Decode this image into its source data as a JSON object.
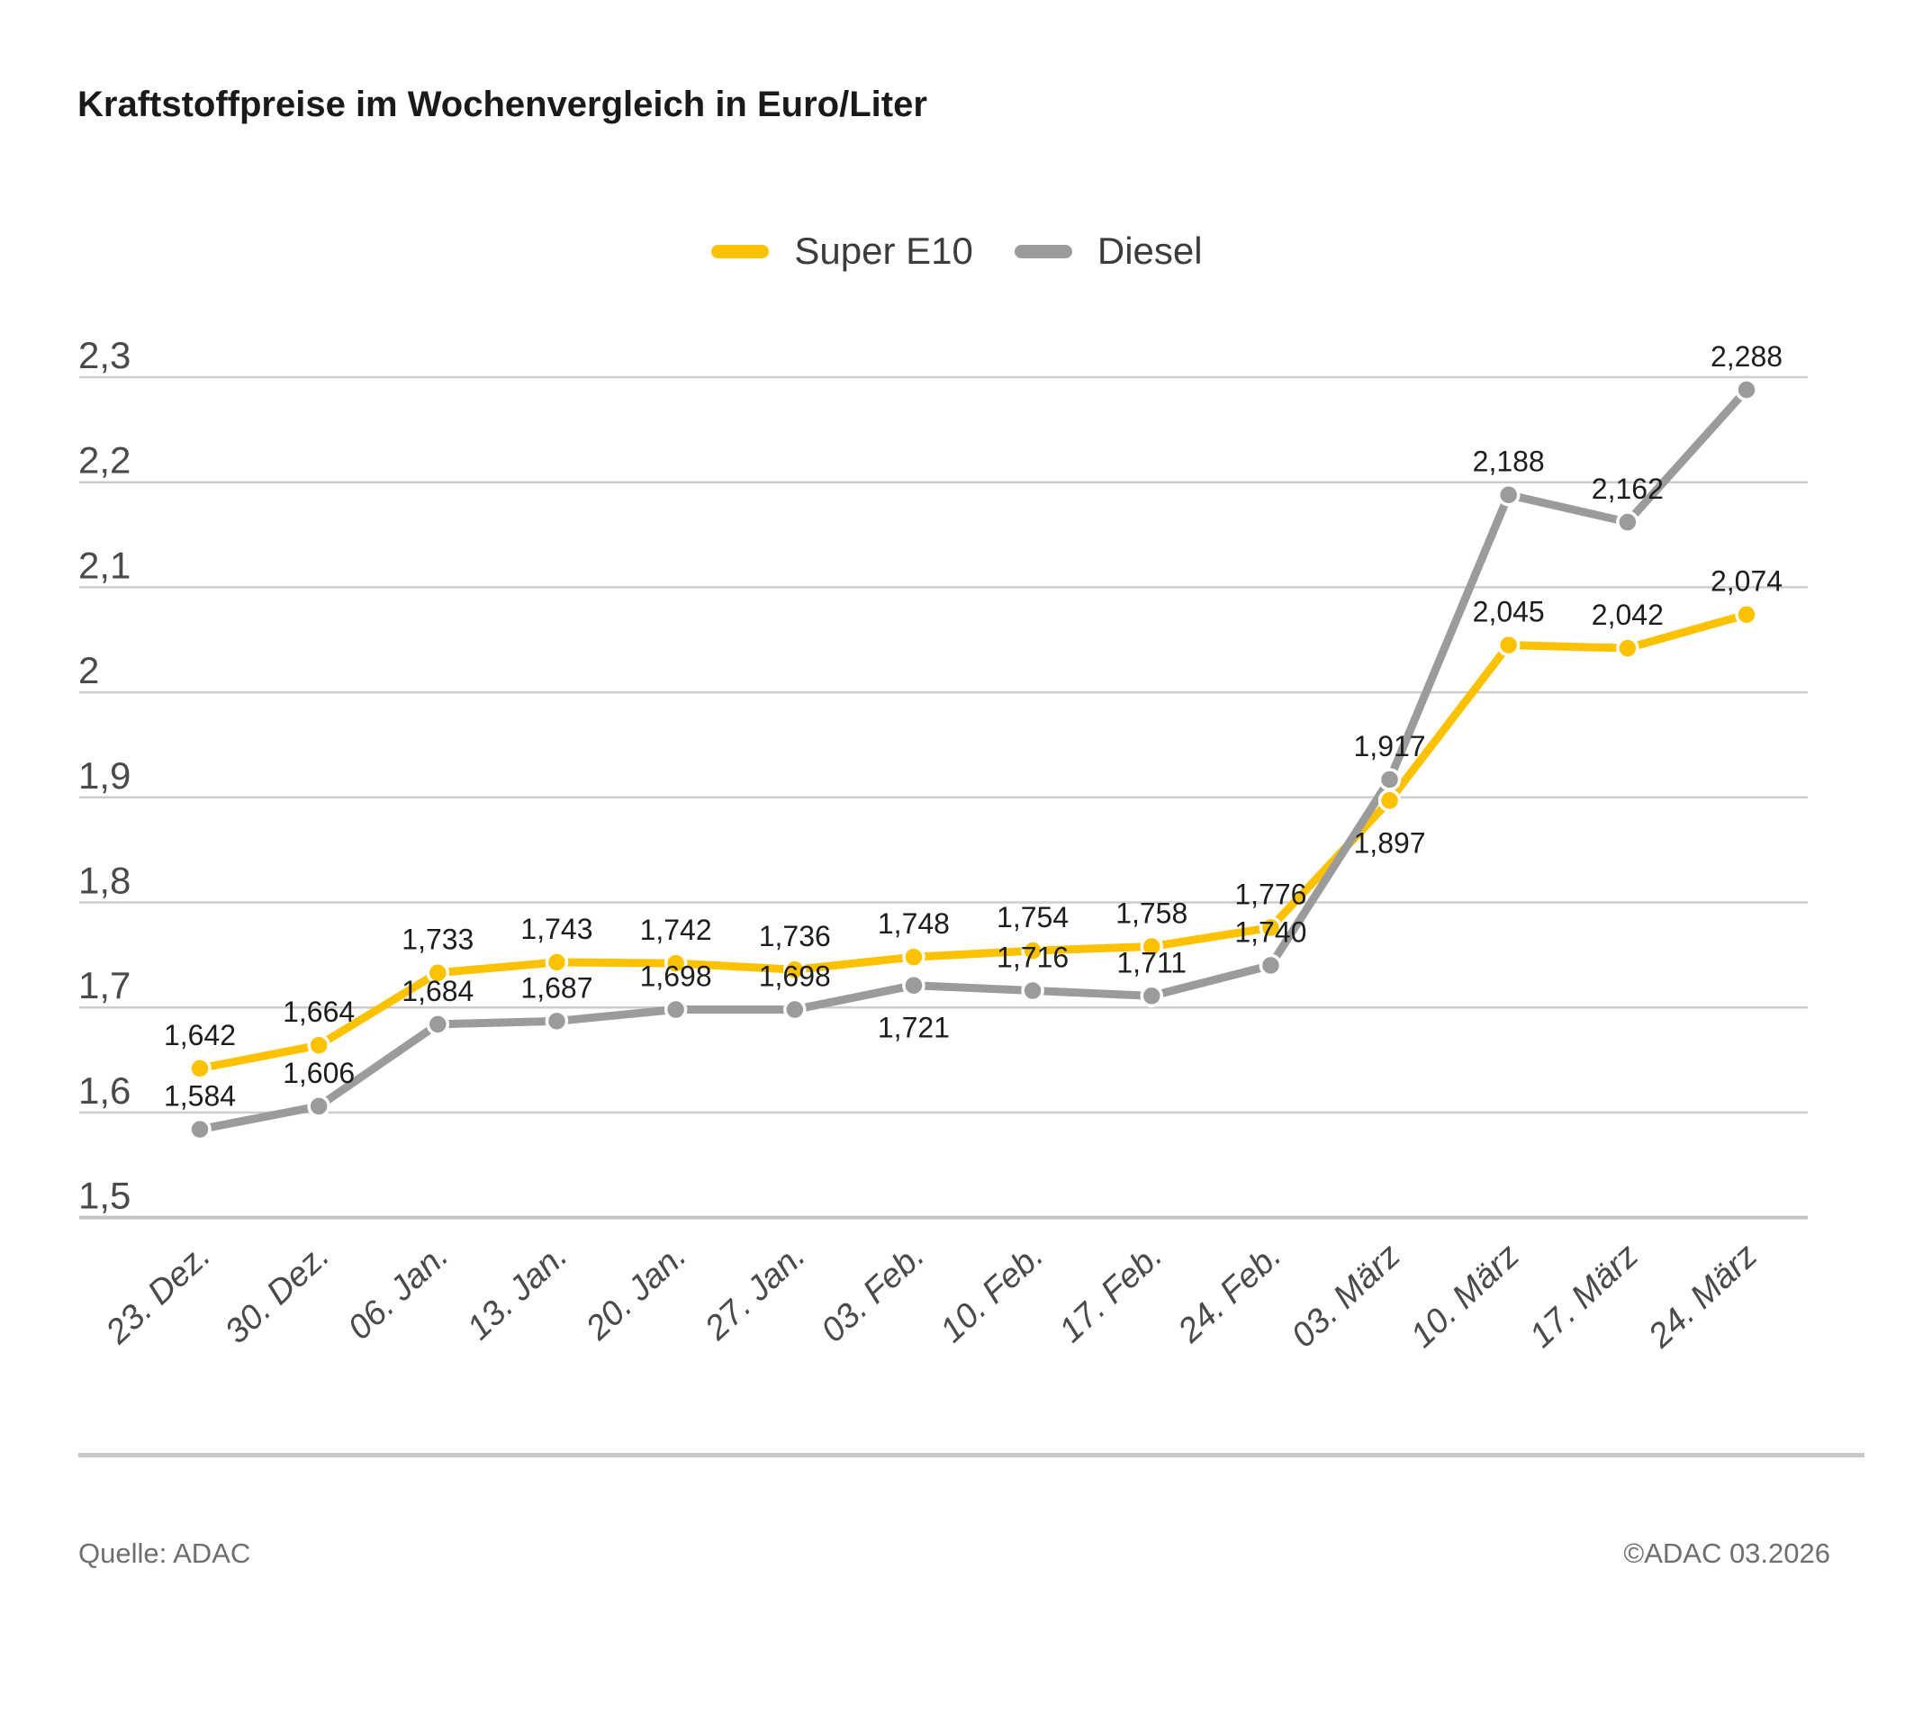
{
  "title": "Kraftstoffpreise im Wochenvergleich in Euro/Liter",
  "footer": {
    "source": "Quelle: ADAC",
    "copyright": "©ADAC 03.2026"
  },
  "colors": {
    "super_e10": "#FCC200",
    "diesel": "#9B9B9B",
    "grid": "#CDCDCD",
    "baseline": "#C3C3C3",
    "tick_text": "#4A4A4A",
    "data_label_text": "#1D1D1B",
    "title_text": "#1A1A1A",
    "footer_text": "#6E6E6E"
  },
  "chart_data": {
    "type": "line",
    "title": "Kraftstoffpreise im Wochenvergleich in Euro/Liter",
    "xlabel": "",
    "ylabel": "Euro/Liter",
    "ylim": [
      1.5,
      2.3
    ],
    "grid": true,
    "legend_position": "top",
    "categories": [
      "23. Dez.",
      "30. Dez.",
      "06. Jan.",
      "13. Jan.",
      "20. Jan.",
      "27. Jan.",
      "03. Feb.",
      "10. Feb.",
      "17. Feb.",
      "24. Feb.",
      "03. März",
      "10. März",
      "17. März",
      "24. März"
    ],
    "yticks": [
      {
        "value": 2.3,
        "label": "2,3"
      },
      {
        "value": 2.2,
        "label": "2,2"
      },
      {
        "value": 2.1,
        "label": "2,1"
      },
      {
        "value": 2.0,
        "label": "2"
      },
      {
        "value": 1.9,
        "label": "1,9"
      },
      {
        "value": 1.8,
        "label": "1,8"
      },
      {
        "value": 1.7,
        "label": "1,7"
      },
      {
        "value": 1.6,
        "label": "1,6"
      },
      {
        "value": 1.5,
        "label": "1,5"
      }
    ],
    "series": [
      {
        "name": "Super E10",
        "color": "#FCC200",
        "values": [
          1.642,
          1.664,
          1.733,
          1.743,
          1.742,
          1.736,
          1.748,
          1.754,
          1.758,
          1.776,
          1.897,
          2.045,
          2.042,
          2.074
        ],
        "labels": [
          "1,642",
          "1,664",
          "1,733",
          "1,743",
          "1,742",
          "1,736",
          "1,748",
          "1,754",
          "1,758",
          "1,776",
          "1,897",
          "2,045",
          "2,042",
          "2,074"
        ],
        "label_side": [
          "above",
          "above",
          "above",
          "above",
          "above",
          "above",
          "above",
          "above",
          "above",
          "above",
          "below",
          "above",
          "above",
          "above"
        ]
      },
      {
        "name": "Diesel",
        "color": "#9B9B9B",
        "values": [
          1.584,
          1.606,
          1.684,
          1.687,
          1.698,
          1.698,
          1.721,
          1.716,
          1.711,
          1.74,
          1.917,
          2.188,
          2.162,
          2.288
        ],
        "labels": [
          "1,584",
          "1,606",
          "1,684",
          "1,687",
          "1,698",
          "1,698",
          "1,721",
          "1,716",
          "1,711",
          "1,740",
          "1,917",
          "2,188",
          "2,162",
          "2,288"
        ],
        "label_side": [
          "above",
          "above",
          "above",
          "above",
          "above",
          "above",
          "below",
          "above",
          "above",
          "above",
          "above",
          "above",
          "above",
          "above"
        ]
      }
    ]
  }
}
